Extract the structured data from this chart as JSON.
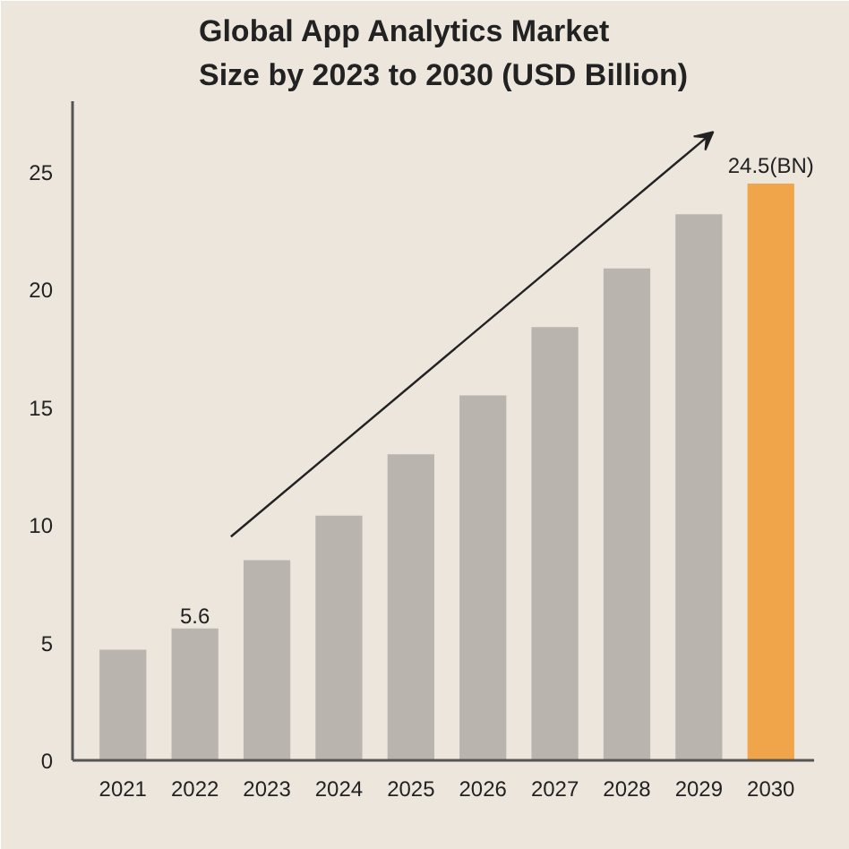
{
  "chart_data": {
    "type": "bar",
    "title": "Global App Analytics Market\nSize by 2023 to 2030 (USD Billion)",
    "categories": [
      "2021",
      "2022",
      "2023",
      "2024",
      "2025",
      "2026",
      "2027",
      "2028",
      "2029",
      "2030"
    ],
    "values": [
      4.7,
      5.6,
      8.5,
      10.4,
      13.0,
      15.5,
      18.4,
      20.9,
      23.2,
      24.5
    ],
    "colors": [
      "#b9b4ae",
      "#b9b4ae",
      "#b9b4ae",
      "#b9b4ae",
      "#b9b4ae",
      "#b9b4ae",
      "#b9b4ae",
      "#b9b4ae",
      "#b9b4ae",
      "#f0a54a"
    ],
    "value_labels": [
      null,
      "5.6",
      null,
      null,
      null,
      null,
      null,
      null,
      null,
      "24.5(BN)"
    ],
    "ylim": [
      0,
      28
    ],
    "yticks": [
      0,
      5,
      10,
      15,
      20,
      25
    ],
    "grid": false
  }
}
